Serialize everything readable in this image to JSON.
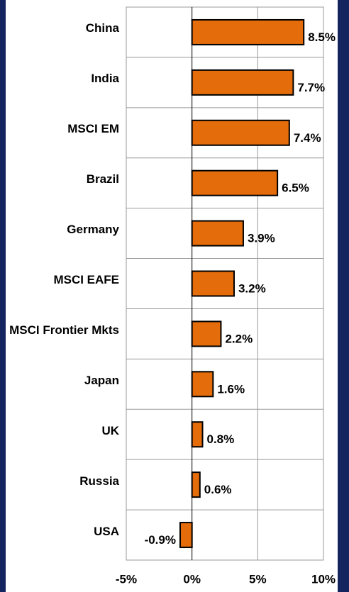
{
  "chart_data": {
    "type": "bar",
    "orientation": "horizontal",
    "categories": [
      "China",
      "India",
      "MSCI EM",
      "Brazil",
      "Germany",
      "MSCI EAFE",
      "MSCI Frontier Mkts",
      "Japan",
      "UK",
      "Russia",
      "USA"
    ],
    "values": [
      8.5,
      7.7,
      7.4,
      6.5,
      3.9,
      3.2,
      2.2,
      1.6,
      0.8,
      0.6,
      -0.9
    ],
    "value_labels": [
      "8.5%",
      "7.7%",
      "7.4%",
      "6.5%",
      "3.9%",
      "3.2%",
      "2.2%",
      "1.6%",
      "0.8%",
      "0.6%",
      "-0.9%"
    ],
    "color": "#e46c0a",
    "xlim": [
      -5,
      10
    ],
    "xticks": [
      {
        "value": -5,
        "label": "-5%"
      },
      {
        "value": 0,
        "label": "0%"
      },
      {
        "value": 5,
        "label": "5%"
      },
      {
        "value": 10,
        "label": "10%"
      }
    ],
    "grid": true
  }
}
